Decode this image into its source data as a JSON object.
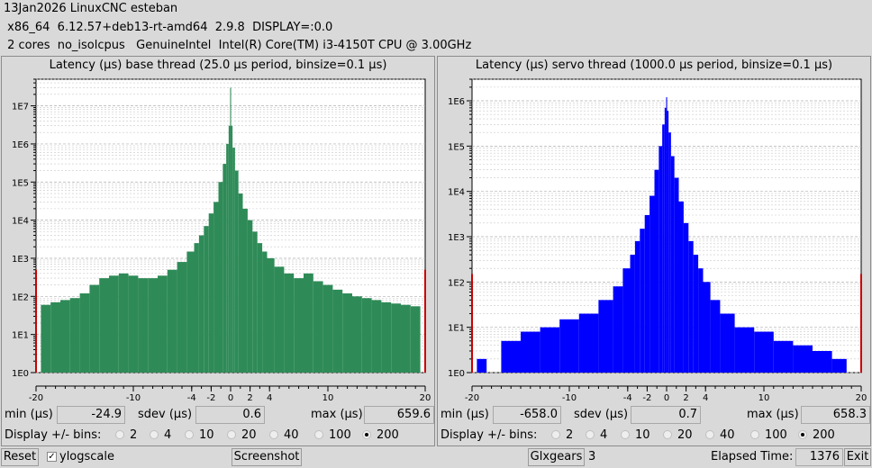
{
  "header": {
    "line1": "13Jan2026 LinuxCNC esteban",
    "line2": " x86_64  6.12.57+deb13-rt-amd64  2.9.8  DISPLAY=:0.0",
    "line3": " 2 cores  no_isolcpus   GenuineIntel  Intel(R) Core(TM) i3-4150T CPU @ 3.00GHz"
  },
  "base": {
    "title": "Latency (µs) base thread (25.0 µs period, binsize=0.1 µs)",
    "min_label": "min (µs)",
    "min": "-24.9",
    "sdev_label": "sdev (µs)",
    "sdev": "0.6",
    "max_label": "max (µs)",
    "max": "659.6",
    "bins_label": "Display +/- bins:"
  },
  "servo": {
    "title": "Latency (µs) servo thread (1000.0 µs period, binsize=0.1 µs)",
    "min_label": "min (µs)",
    "min": "-658.0",
    "sdev_label": "sdev (µs)",
    "sdev": "0.7",
    "max_label": "max (µs)",
    "max": "658.3",
    "bins_label": "Display +/- bins:"
  },
  "bin_options": [
    "2",
    "4",
    "10",
    "20",
    "40",
    "100",
    "200"
  ],
  "bin_selected": "200",
  "footer": {
    "reset": "Reset",
    "ylogscale": "ylogscale",
    "ylogscale_checked": true,
    "screenshot": "Screenshot",
    "glxgears": "Glxgears",
    "glxgears_count": "3",
    "elapsed_label": "Elapsed Time:",
    "elapsed": "1376",
    "exit": "Exit"
  },
  "colors": {
    "base_fill": "#2e8b57",
    "servo_fill": "#0000ff",
    "outlier": "#cc0000",
    "plot_bg": "#ffffff"
  },
  "chart_data": [
    {
      "type": "bar",
      "title": "Latency (µs) base thread (25.0 µs period, binsize=0.1 µs)",
      "xlim": [
        -20,
        20
      ],
      "x_ticks": [
        -20,
        -10,
        -4,
        -2,
        0,
        2,
        4,
        10,
        20
      ],
      "y_scale": "log",
      "ylim": [
        1,
        50000000
      ],
      "y_ticks": [
        "1E0",
        "1E1",
        "1E2",
        "1E3",
        "1E4",
        "1E5",
        "1E6",
        "1E7"
      ],
      "grid": true,
      "series": [
        {
          "x": [
            -20,
            -19,
            -18,
            -17,
            -16,
            -15,
            -14,
            -13,
            -12,
            -11,
            -10,
            -9,
            -8,
            -7,
            -6,
            -5,
            -4,
            -3.5,
            -3,
            -2.5,
            -2,
            -1.5,
            -1,
            -0.6,
            -0.3,
            -0.1,
            0,
            0.1,
            0.3,
            0.6,
            1,
            1.5,
            2,
            2.5,
            3,
            3.5,
            4,
            5,
            6,
            7,
            8,
            9,
            10,
            11,
            12,
            13,
            14,
            15,
            16,
            17,
            18,
            19,
            20
          ],
          "values": [
            500,
            60,
            70,
            80,
            90,
            120,
            200,
            300,
            350,
            400,
            350,
            300,
            300,
            350,
            500,
            800,
            1500,
            2500,
            4000,
            7000,
            15000,
            30000,
            100000,
            300000,
            1000000,
            3000000,
            30000000,
            3000000,
            800000,
            200000,
            50000,
            20000,
            10000,
            5000,
            2500,
            1500,
            1000,
            600,
            400,
            300,
            400,
            250,
            200,
            150,
            120,
            100,
            90,
            80,
            70,
            65,
            60,
            55,
            500
          ]
        }
      ]
    },
    {
      "type": "bar",
      "title": "Latency (µs) servo thread (1000.0 µs period, binsize=0.1 µs)",
      "xlim": [
        -20,
        20
      ],
      "x_ticks": [
        -20,
        -10,
        -4,
        -2,
        0,
        2,
        4,
        10,
        20
      ],
      "y_scale": "log",
      "ylim": [
        1,
        3000000
      ],
      "y_ticks": [
        "1E0",
        "1E1",
        "1E2",
        "1E3",
        "1E4",
        "1E5",
        "1E6"
      ],
      "grid": true,
      "series": [
        {
          "x": [
            -20,
            -19,
            -18,
            -16,
            -14,
            -12,
            -10,
            -8,
            -6,
            -5,
            -4,
            -3.5,
            -3,
            -2.5,
            -2,
            -1.5,
            -1,
            -0.6,
            -0.3,
            -0.1,
            0,
            0.1,
            0.3,
            0.6,
            1,
            1.5,
            2,
            2.5,
            3,
            3.5,
            4,
            5,
            6,
            8,
            10,
            12,
            14,
            16,
            18,
            19,
            20
          ],
          "values": [
            150,
            2,
            1,
            5,
            8,
            10,
            15,
            20,
            40,
            80,
            200,
            400,
            800,
            1500,
            3000,
            8000,
            30000,
            100000,
            300000,
            700000,
            1200000,
            600000,
            200000,
            60000,
            20000,
            6000,
            2000,
            800,
            400,
            200,
            100,
            40,
            20,
            10,
            8,
            5,
            4,
            3,
            2,
            1,
            150
          ]
        }
      ]
    }
  ]
}
